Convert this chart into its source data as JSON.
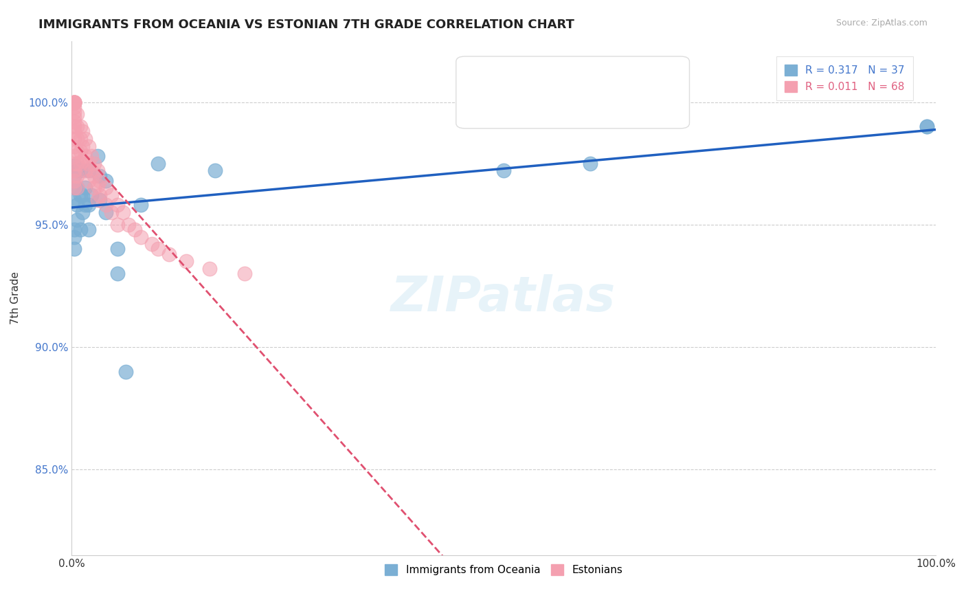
{
  "title": "IMMIGRANTS FROM OCEANIA VS ESTONIAN 7TH GRADE CORRELATION CHART",
  "source_text": "Source: ZipAtlas.com",
  "xlabel": "",
  "ylabel": "7th Grade",
  "blue_label": "Immigrants from Oceania",
  "pink_label": "Estonians",
  "blue_R": 0.317,
  "blue_N": 37,
  "pink_R": 0.011,
  "pink_N": 68,
  "xmin": 0.0,
  "xmax": 1.0,
  "ymin": 0.815,
  "ymax": 1.025,
  "yticks": [
    0.85,
    0.9,
    0.95,
    1.0
  ],
  "ytick_labels": [
    "85.0%",
    "90.0%",
    "95.0%",
    "100.0%"
  ],
  "xticks": [
    0.0,
    1.0
  ],
  "xtick_labels": [
    "0.0%",
    "100.0%"
  ],
  "grid_color": "#cccccc",
  "blue_color": "#7bafd4",
  "pink_color": "#f4a0b0",
  "blue_line_color": "#2060c0",
  "pink_line_color": "#e05070",
  "watermark_text": "ZIPatlas",
  "blue_scatter_x": [
    0.003,
    0.003,
    0.003,
    0.003,
    0.003,
    0.003,
    0.003,
    0.006,
    0.006,
    0.006,
    0.006,
    0.01,
    0.01,
    0.01,
    0.013,
    0.013,
    0.016,
    0.016,
    0.02,
    0.02,
    0.02,
    0.023,
    0.03,
    0.033,
    0.033,
    0.04,
    0.04,
    0.053,
    0.053,
    0.063,
    0.08,
    0.1,
    0.166,
    0.5,
    0.6,
    0.99,
    0.99
  ],
  "blue_scatter_y": [
    0.974,
    0.97,
    0.965,
    0.96,
    0.948,
    0.945,
    0.94,
    0.972,
    0.965,
    0.958,
    0.952,
    0.972,
    0.962,
    0.948,
    0.962,
    0.955,
    0.965,
    0.958,
    0.972,
    0.958,
    0.948,
    0.962,
    0.978,
    0.97,
    0.96,
    0.968,
    0.955,
    0.94,
    0.93,
    0.89,
    0.958,
    0.975,
    0.972,
    0.972,
    0.975,
    0.99,
    0.99
  ],
  "pink_scatter_x": [
    0.003,
    0.003,
    0.003,
    0.003,
    0.003,
    0.003,
    0.003,
    0.003,
    0.003,
    0.003,
    0.003,
    0.003,
    0.003,
    0.003,
    0.003,
    0.003,
    0.003,
    0.003,
    0.003,
    0.003,
    0.003,
    0.003,
    0.006,
    0.006,
    0.006,
    0.006,
    0.006,
    0.006,
    0.006,
    0.01,
    0.01,
    0.01,
    0.01,
    0.013,
    0.013,
    0.013,
    0.016,
    0.016,
    0.016,
    0.02,
    0.02,
    0.02,
    0.023,
    0.023,
    0.026,
    0.026,
    0.026,
    0.03,
    0.03,
    0.03,
    0.033,
    0.033,
    0.04,
    0.04,
    0.046,
    0.046,
    0.053,
    0.053,
    0.06,
    0.066,
    0.073,
    0.08,
    0.093,
    0.1,
    0.113,
    0.133,
    0.16,
    0.2
  ],
  "pink_scatter_y": [
    1.0,
    1.0,
    1.0,
    1.0,
    1.0,
    1.0,
    1.0,
    1.0,
    0.998,
    0.996,
    0.994,
    0.992,
    0.99,
    0.988,
    0.985,
    0.982,
    0.978,
    0.975,
    0.972,
    0.97,
    0.968,
    0.965,
    0.995,
    0.99,
    0.985,
    0.98,
    0.975,
    0.97,
    0.965,
    0.99,
    0.985,
    0.98,
    0.975,
    0.988,
    0.982,
    0.976,
    0.985,
    0.978,
    0.972,
    0.982,
    0.975,
    0.968,
    0.978,
    0.972,
    0.975,
    0.97,
    0.965,
    0.972,
    0.966,
    0.96,
    0.968,
    0.962,
    0.965,
    0.958,
    0.962,
    0.955,
    0.958,
    0.95,
    0.955,
    0.95,
    0.948,
    0.945,
    0.942,
    0.94,
    0.938,
    0.935,
    0.932,
    0.93
  ]
}
